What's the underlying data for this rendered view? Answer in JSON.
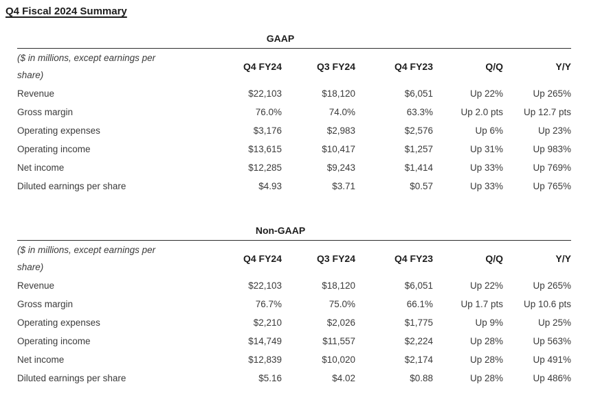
{
  "page": {
    "title": "Q4 Fiscal 2024 Summary"
  },
  "tables": [
    {
      "caption": "GAAP",
      "note": "($ in millions, except earnings per share)",
      "columns": [
        "Q4 FY24",
        "Q3 FY24",
        "Q4 FY23",
        "Q/Q",
        "Y/Y"
      ],
      "rows": [
        {
          "label": "Revenue",
          "values": [
            "$22,103",
            "$18,120",
            "$6,051",
            "Up 22%",
            "Up 265%"
          ]
        },
        {
          "label": "Gross margin",
          "values": [
            "76.0%",
            "74.0%",
            "63.3%",
            "Up 2.0 pts",
            "Up 12.7 pts"
          ]
        },
        {
          "label": "Operating expenses",
          "values": [
            "$3,176",
            "$2,983",
            "$2,576",
            "Up 6%",
            "Up 23%"
          ]
        },
        {
          "label": "Operating income",
          "values": [
            "$13,615",
            "$10,417",
            "$1,257",
            "Up 31%",
            "Up 983%"
          ]
        },
        {
          "label": "Net income",
          "values": [
            "$12,285",
            "$9,243",
            "$1,414",
            "Up 33%",
            "Up 769%"
          ]
        },
        {
          "label": "Diluted earnings per share",
          "values": [
            "$4.93",
            "$3.71",
            "$0.57",
            "Up 33%",
            "Up 765%"
          ]
        }
      ]
    },
    {
      "caption": "Non-GAAP",
      "note": "($ in millions, except earnings per share)",
      "columns": [
        "Q4 FY24",
        "Q3 FY24",
        "Q4 FY23",
        "Q/Q",
        "Y/Y"
      ],
      "rows": [
        {
          "label": "Revenue",
          "values": [
            "$22,103",
            "$18,120",
            "$6,051",
            "Up 22%",
            "Up 265%"
          ]
        },
        {
          "label": "Gross margin",
          "values": [
            "76.7%",
            "75.0%",
            "66.1%",
            "Up 1.7 pts",
            "Up 10.6 pts"
          ]
        },
        {
          "label": "Operating expenses",
          "values": [
            "$2,210",
            "$2,026",
            "$1,775",
            "Up 9%",
            "Up 25%"
          ]
        },
        {
          "label": "Operating income",
          "values": [
            "$14,749",
            "$11,557",
            "$2,224",
            "Up 28%",
            "Up 563%"
          ]
        },
        {
          "label": "Net income",
          "values": [
            "$12,839",
            "$10,020",
            "$2,174",
            "Up 28%",
            "Up 491%"
          ]
        },
        {
          "label": "Diluted earnings per share",
          "values": [
            "$5.16",
            "$4.02",
            "$0.88",
            "Up 28%",
            "Up 486%"
          ]
        }
      ]
    }
  ],
  "colors": {
    "text": "#3a3a3a",
    "heading": "#1c1c1c",
    "rule": "#2b2b2b",
    "background": "#ffffff"
  }
}
